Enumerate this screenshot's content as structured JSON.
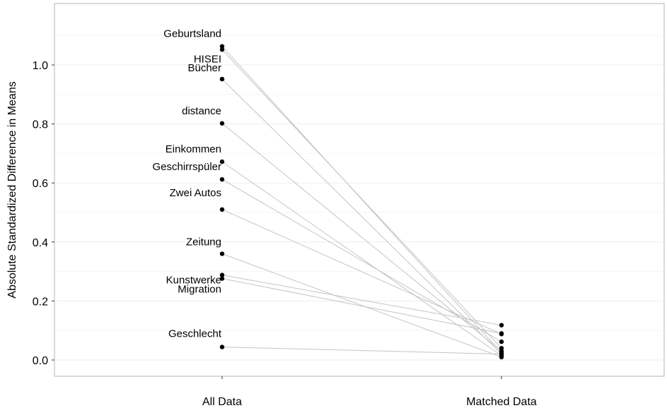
{
  "chart_data": {
    "type": "scatter",
    "title": "",
    "xlabel": "",
    "ylabel": "Absolute Standardized Difference in Means",
    "categories": [
      "All Data",
      "Matched Data"
    ],
    "ylim": [
      -0.05,
      1.2
    ],
    "yticks": [
      0.0,
      0.2,
      0.4,
      0.6,
      0.8,
      1.0
    ],
    "ytick_labels": [
      "0.0",
      "0.2",
      "0.4",
      "0.6",
      "0.8",
      "1.0"
    ],
    "grid": true,
    "legend": "none",
    "series": [
      {
        "name": "Geburtsland",
        "values": [
          1.063,
          0.025
        ]
      },
      {
        "name": "HISEI",
        "values": [
          1.052,
          0.04
        ]
      },
      {
        "name": "Bücher",
        "values": [
          0.952,
          0.02
        ]
      },
      {
        "name": "distance",
        "values": [
          0.802,
          0.03
        ]
      },
      {
        "name": "Einkommen",
        "values": [
          0.672,
          0.015
        ]
      },
      {
        "name": "Geschirrspüler",
        "values": [
          0.612,
          0.062
        ]
      },
      {
        "name": "Zwei Autos",
        "values": [
          0.51,
          0.088
        ]
      },
      {
        "name": "Zeitung",
        "values": [
          0.36,
          0.01
        ]
      },
      {
        "name": "Kunstwerke",
        "values": [
          0.288,
          0.118
        ]
      },
      {
        "name": "Migration",
        "values": [
          0.276,
          0.09
        ]
      },
      {
        "name": "Geschlecht",
        "values": [
          0.044,
          0.02
        ]
      }
    ]
  }
}
